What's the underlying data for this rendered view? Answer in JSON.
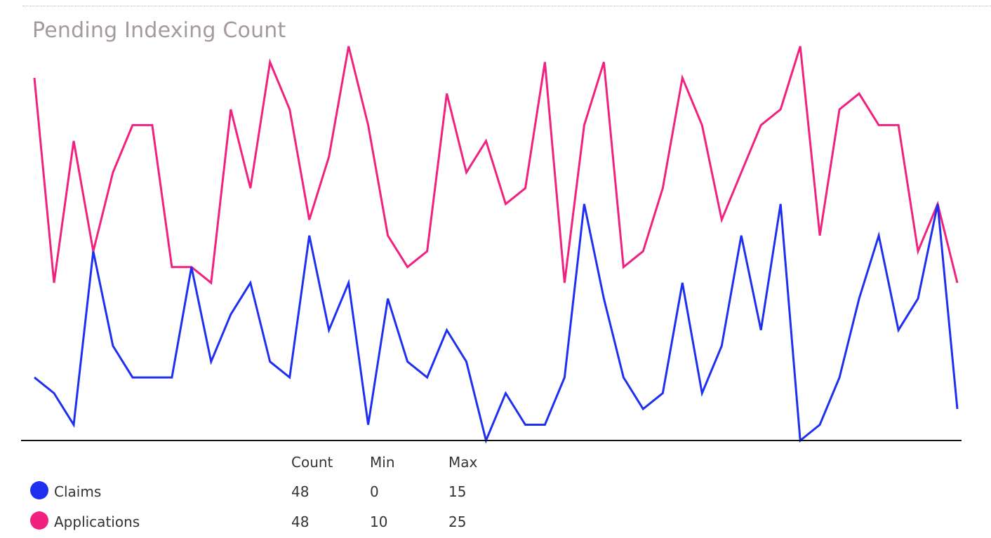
{
  "title": "Pending Indexing Count",
  "chart_data": {
    "type": "line",
    "title": "Pending Indexing Count",
    "xlabel": "",
    "ylabel": "",
    "ylim": [
      0,
      25
    ],
    "grid": false,
    "legend_position": "bottom-left",
    "x": [
      1,
      2,
      3,
      4,
      5,
      6,
      7,
      8,
      9,
      10,
      11,
      12,
      13,
      14,
      15,
      16,
      17,
      18,
      19,
      20,
      21,
      22,
      23,
      24,
      25,
      26,
      27,
      28,
      29,
      30,
      31,
      32,
      33,
      34,
      35,
      36,
      37,
      38,
      39,
      40,
      41,
      42,
      43,
      44,
      45,
      46,
      47,
      48
    ],
    "series": [
      {
        "name": "Applications",
        "color": "#f0217f",
        "values": [
          23,
          10,
          19,
          12,
          17,
          20,
          20,
          11,
          11,
          10,
          21,
          16,
          24,
          21,
          14,
          18,
          25,
          20,
          13,
          11,
          12,
          22,
          17,
          19,
          15,
          16,
          24,
          10,
          20,
          24,
          11,
          12,
          16,
          23,
          20,
          14,
          17,
          20,
          21,
          25,
          13,
          21,
          22,
          20,
          20,
          12,
          15,
          10
        ]
      },
      {
        "name": "Claims",
        "color": "#1f2ff0",
        "values": [
          4,
          3,
          1,
          12,
          6,
          4,
          4,
          4,
          11,
          5,
          8,
          10,
          5,
          4,
          13,
          7,
          10,
          1,
          9,
          5,
          4,
          7,
          5,
          0,
          3,
          1,
          1,
          4,
          15,
          9,
          4,
          2,
          3,
          10,
          3,
          6,
          13,
          7,
          15,
          0,
          1,
          4,
          9,
          13,
          7,
          9,
          15,
          2
        ]
      }
    ],
    "stats_headers": [
      "Count",
      "Min",
      "Max"
    ],
    "stats": [
      {
        "name": "Claims",
        "color": "#1f2ff0",
        "count": "48",
        "min": "0",
        "max": "15"
      },
      {
        "name": "Applications",
        "color": "#f0217f",
        "count": "48",
        "min": "10",
        "max": "25"
      }
    ]
  }
}
